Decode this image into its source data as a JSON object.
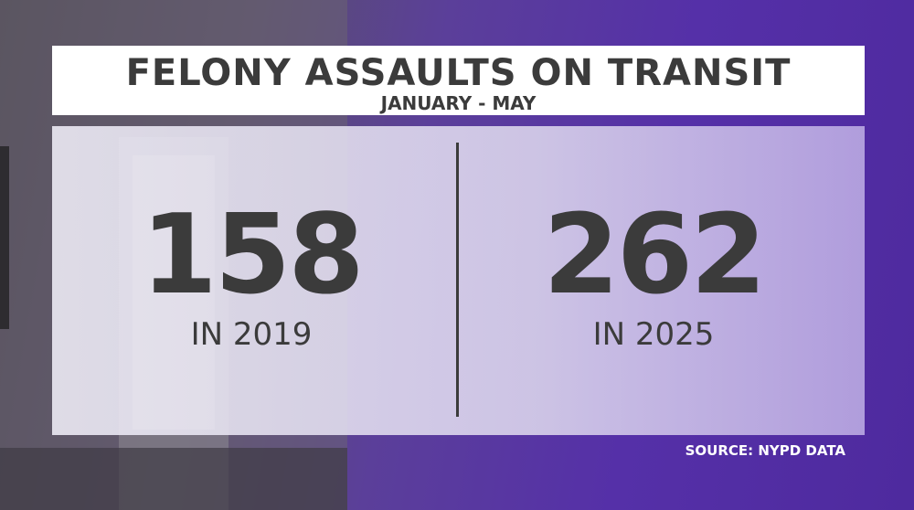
{
  "header": {
    "title": "FELONY ASSAULTS ON TRANSIT",
    "subtitle": "JANUARY - MAY"
  },
  "stats": [
    {
      "value": 158,
      "label": "IN 2019"
    },
    {
      "value": 262,
      "label": "IN 2025"
    }
  ],
  "source": "SOURCE: NYPD DATA"
}
